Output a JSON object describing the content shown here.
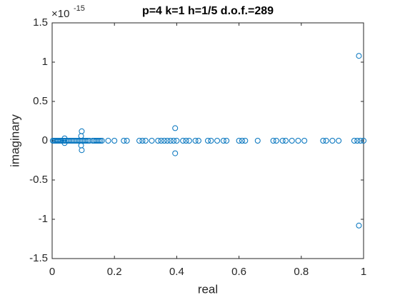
{
  "chart_data": {
    "type": "scatter",
    "title": "p=4 k=1 h=1/5 d.o.f.=289",
    "xlabel": "real",
    "ylabel": "imaginary",
    "y_multiplier": "×10",
    "y_exponent": "-15",
    "color": "#0072bd",
    "x": [
      0.002,
      0.006,
      0.01,
      0.014,
      0.018,
      0.022,
      0.026,
      0.03,
      0.035,
      0.04,
      0.045,
      0.05,
      0.055,
      0.06,
      0.065,
      0.07,
      0.075,
      0.08,
      0.085,
      0.09,
      0.095,
      0.1,
      0.105,
      0.11,
      0.115,
      0.12,
      0.13,
      0.135,
      0.14,
      0.145,
      0.15,
      0.155,
      0.16,
      0.18,
      0.2,
      0.23,
      0.24,
      0.28,
      0.29,
      0.3,
      0.32,
      0.34,
      0.35,
      0.36,
      0.37,
      0.38,
      0.39,
      0.4,
      0.42,
      0.43,
      0.44,
      0.46,
      0.47,
      0.5,
      0.51,
      0.53,
      0.55,
      0.56,
      0.6,
      0.61,
      0.62,
      0.66,
      0.71,
      0.72,
      0.74,
      0.75,
      0.77,
      0.79,
      0.81,
      0.87,
      0.88,
      0.9,
      0.92,
      0.97,
      0.98,
      0.99,
      1.0,
      0.985,
      0.985,
      0.395,
      0.395,
      0.095,
      0.095,
      0.093,
      0.093,
      0.04,
      0.04
    ],
    "values": [
      0,
      0,
      0,
      0,
      0,
      0,
      0,
      0,
      0,
      0,
      0,
      0,
      0,
      0,
      0,
      0,
      0,
      0,
      0,
      0,
      0,
      0,
      0,
      0,
      0,
      0,
      0,
      0,
      0,
      0,
      0,
      0,
      0,
      0,
      0,
      0,
      0,
      0,
      0,
      0,
      0,
      0,
      0,
      0,
      0,
      0,
      0,
      0,
      0,
      0,
      0,
      0,
      0,
      0,
      0,
      0,
      0,
      0,
      0,
      0,
      0,
      0,
      0,
      0,
      0,
      0,
      0,
      0,
      0,
      0,
      0,
      0,
      0,
      0,
      0,
      0,
      0,
      1.08,
      -1.08,
      0.16,
      -0.16,
      0.12,
      -0.12,
      0.06,
      -0.06,
      0.03,
      -0.03
    ],
    "xlim": [
      0,
      1
    ],
    "ylim": [
      -1.5,
      1.5
    ],
    "xticks": [
      0,
      0.2,
      0.4,
      0.6,
      0.8,
      1
    ],
    "yticks": [
      -1.5,
      -1,
      -0.5,
      0,
      0.5,
      1,
      1.5
    ]
  }
}
